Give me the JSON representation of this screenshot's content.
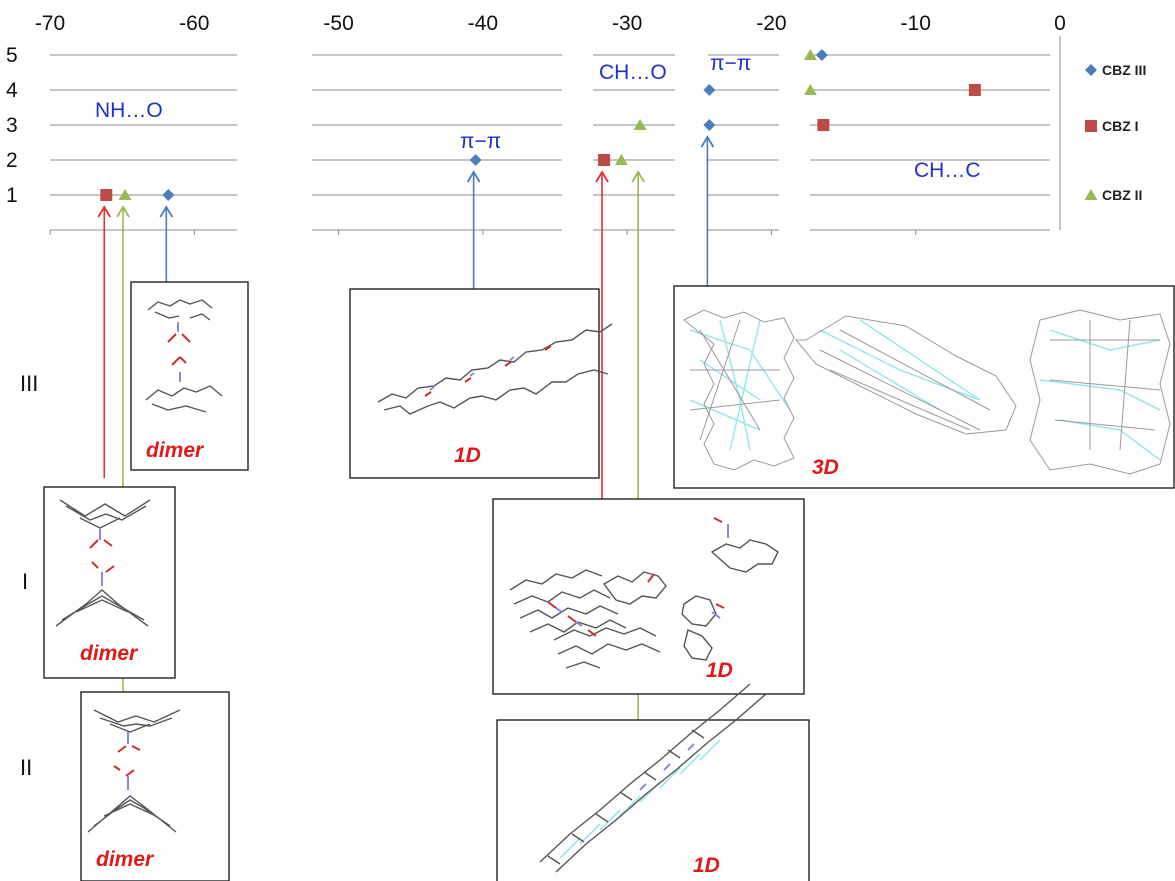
{
  "chart_data": {
    "type": "scatter",
    "title": "",
    "xlabel": "",
    "ylabel": "",
    "xlim": [
      -70,
      0
    ],
    "ylim": [
      0,
      5
    ],
    "x_ticks": [
      "-70",
      "-60",
      "-50",
      "-40",
      "-30",
      "-20",
      "-10",
      "0"
    ],
    "y_ticks": [
      "1",
      "2",
      "3",
      "4",
      "5"
    ],
    "grid": true,
    "legend_position": "right",
    "series": [
      {
        "name": "CBZ III",
        "color": "#4a7ebb",
        "marker": "diamond",
        "points": [
          [
            -61.8,
            1
          ],
          [
            -40.5,
            2
          ],
          [
            -24.3,
            3
          ],
          [
            -24.3,
            4
          ],
          [
            -16.5,
            5
          ]
        ]
      },
      {
        "name": "CBZ I",
        "color": "#be4b48",
        "marker": "square",
        "points": [
          [
            -66.1,
            1
          ],
          [
            -31.6,
            2
          ],
          [
            -16.4,
            3
          ],
          [
            -5.9,
            4
          ]
        ]
      },
      {
        "name": "CBZ II",
        "color": "#98b954",
        "marker": "triangle",
        "points": [
          [
            -64.8,
            1
          ],
          [
            -30.4,
            2
          ],
          [
            -29.1,
            3
          ],
          [
            -17.3,
            4
          ],
          [
            -17.3,
            5
          ]
        ]
      }
    ],
    "annotations": [
      "NH…O",
      "π−π",
      "CH…O",
      "π−π",
      "CH…C"
    ]
  },
  "row_labels": [
    "III",
    "I",
    "II"
  ],
  "boxes": [
    {
      "label": "dimer"
    },
    {
      "label": "1D"
    },
    {
      "label": "3D"
    },
    {
      "label": "dimer"
    },
    {
      "label": "1D"
    },
    {
      "label": "dimer"
    },
    {
      "label": "1D"
    }
  ]
}
